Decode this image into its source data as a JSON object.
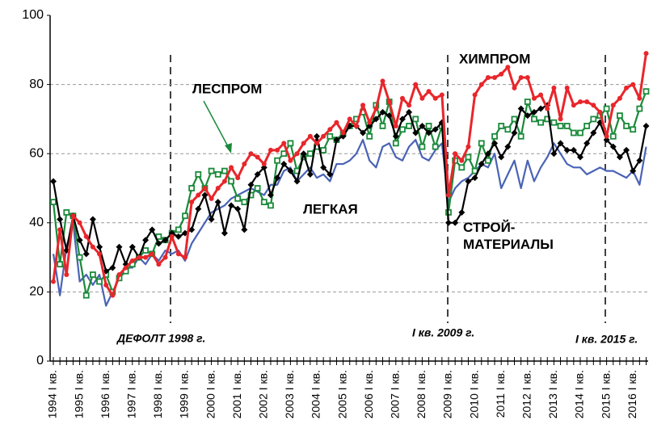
{
  "chart_data": {
    "type": "line",
    "categories": [
      "1994 I кв.",
      null,
      null,
      null,
      "1995 I кв.",
      null,
      null,
      null,
      "1996 I кв.",
      null,
      null,
      null,
      "1997 I кв.",
      null,
      null,
      null,
      "1998 I кв.",
      null,
      null,
      null,
      "1999 I кв.",
      null,
      null,
      null,
      "2000 I кв.",
      null,
      null,
      null,
      "2001 I кв.",
      null,
      null,
      null,
      "2002 I кв.",
      null,
      null,
      null,
      "2003 I кв.",
      null,
      null,
      null,
      "2004 I кв.",
      null,
      null,
      null,
      "2005 I кв.",
      null,
      null,
      null,
      "2006 I кв.",
      null,
      null,
      null,
      "2007 I кв.",
      null,
      null,
      null,
      "2008 I кв.",
      null,
      null,
      null,
      "2009 I кв.",
      null,
      null,
      null,
      "2010 I кв.",
      null,
      null,
      null,
      "2011 I кв.",
      null,
      null,
      null,
      "2012 I кв.",
      null,
      null,
      null,
      "2013 I кв.",
      null,
      null,
      null,
      "2014 I кв.",
      null,
      null,
      null,
      "2015 I кв.",
      null,
      null,
      null,
      "2016 I кв.",
      null,
      null
    ],
    "series": [
      {
        "name": "ЛЕГКАЯ",
        "color": "#4a63b5",
        "marker": "none",
        "values": [
          31,
          19,
          33,
          40,
          23,
          25,
          22,
          25,
          16,
          20,
          24,
          27,
          27,
          30,
          28,
          31,
          29,
          32,
          31,
          32,
          29,
          34,
          37,
          40,
          43,
          44,
          45,
          47,
          48,
          49,
          50,
          49,
          48,
          51,
          51,
          55,
          56,
          52,
          54,
          56,
          53,
          54,
          52,
          57,
          57,
          58,
          60,
          64,
          58,
          56,
          62,
          63,
          59,
          58,
          62,
          64,
          59,
          58,
          61,
          63,
          46,
          50,
          52,
          53,
          55,
          57,
          56,
          60,
          50,
          54,
          58,
          50,
          58,
          52,
          56,
          59,
          63,
          60,
          57,
          56,
          56,
          54,
          55,
          56,
          55,
          55,
          54,
          53,
          55,
          51,
          62
        ]
      },
      {
        "name": "ЛЕСПРОМ",
        "color": "#1a8a3a",
        "marker": "square",
        "values": [
          46,
          28,
          43,
          42,
          30,
          19,
          25,
          23,
          25,
          20,
          24,
          26,
          28,
          30,
          32,
          31,
          36,
          35,
          37,
          38,
          42,
          50,
          54,
          50,
          55,
          54,
          55,
          52,
          47,
          46,
          48,
          50,
          46,
          45,
          58,
          60,
          63,
          55,
          59,
          60,
          62,
          61,
          65,
          64,
          66,
          68,
          70,
          72,
          65,
          74,
          68,
          75,
          63,
          67,
          68,
          70,
          62,
          68,
          62,
          68,
          43,
          58,
          56,
          59,
          55,
          63,
          58,
          65,
          68,
          67,
          70,
          65,
          75,
          70,
          69,
          70,
          69,
          68,
          68,
          66,
          66,
          68,
          70,
          71,
          73,
          65,
          71,
          68,
          67,
          73,
          78
        ]
      },
      {
        "name": "СТРОЙ-МАТЕРИАЛЫ",
        "color": "#000000",
        "marker": "diamond",
        "values": [
          52,
          41,
          32,
          42,
          35,
          31,
          41,
          33,
          26,
          27,
          33,
          28,
          33,
          30,
          35,
          38,
          34,
          35,
          37,
          36,
          37,
          38,
          44,
          48,
          41,
          46,
          37,
          45,
          44,
          38,
          51,
          54,
          56,
          48,
          53,
          57,
          55,
          52,
          60,
          54,
          65,
          56,
          54,
          64,
          65,
          68,
          68,
          66,
          68,
          70,
          72,
          71,
          65,
          70,
          72,
          66,
          68,
          66,
          67,
          69,
          40,
          40,
          43,
          52,
          53,
          57,
          60,
          63,
          59,
          62,
          66,
          73,
          71,
          72,
          73,
          74,
          60,
          63,
          61,
          61,
          59,
          63,
          66,
          69,
          64,
          62,
          59,
          61,
          55,
          58,
          68
        ]
      },
      {
        "name": "ХИМПРОМ",
        "color": "#e8262b",
        "marker": "circle",
        "values": [
          23,
          38,
          25,
          42,
          40,
          36,
          33,
          31,
          22,
          19,
          25,
          27,
          29,
          30,
          30,
          31,
          28,
          30,
          36,
          31,
          30,
          46,
          48,
          50,
          47,
          50,
          52,
          56,
          53,
          57,
          60,
          59,
          57,
          61,
          61,
          63,
          58,
          60,
          63,
          65,
          63,
          65,
          67,
          69,
          66,
          70,
          68,
          74,
          69,
          73,
          81,
          75,
          68,
          76,
          74,
          80,
          76,
          78,
          76,
          77,
          48,
          60,
          58,
          62,
          77,
          80,
          82,
          82,
          83,
          85,
          79,
          82,
          82,
          76,
          77,
          73,
          79,
          70,
          79,
          74,
          75,
          75,
          74,
          72,
          65,
          74,
          76,
          79,
          80,
          76,
          89
        ]
      }
    ],
    "ylim": [
      0,
      100
    ],
    "yticks": [
      0,
      20,
      40,
      60,
      80,
      100
    ],
    "grid": true,
    "annotations": [
      "ДЕФОЛТ 1998 г.",
      "I кв. 2009 г.",
      "I кв. 2015 г."
    ]
  }
}
